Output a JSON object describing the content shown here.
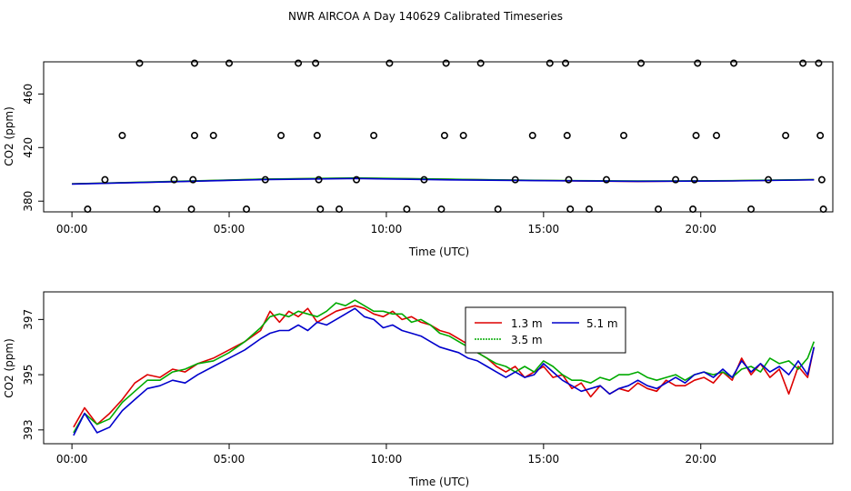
{
  "title": "NWR AIRCOA A  Day 140629  Calibrated Timeseries",
  "chart_data": [
    {
      "type": "scatter",
      "xlabel": "Time (UTC)",
      "ylabel": "CO2 (ppm)",
      "xlim": [
        -0.9,
        24.2
      ],
      "ylim": [
        372,
        484
      ],
      "x_ticks": [
        0,
        5,
        10,
        15,
        20
      ],
      "x_tick_labels": [
        "00:00",
        "05:00",
        "10:00",
        "15:00",
        "20:00"
      ],
      "y_ticks": [
        380,
        420,
        460
      ],
      "y_tick_labels": [
        "380",
        "420",
        "460"
      ],
      "points": [
        {
          "x": 0.5,
          "y": 374
        },
        {
          "x": 1.05,
          "y": 396
        },
        {
          "x": 1.6,
          "y": 429
        },
        {
          "x": 2.15,
          "y": 483
        },
        {
          "x": 2.7,
          "y": 374
        },
        {
          "x": 3.25,
          "y": 396
        },
        {
          "x": 3.8,
          "y": 374
        },
        {
          "x": 3.85,
          "y": 396
        },
        {
          "x": 3.9,
          "y": 429
        },
        {
          "x": 3.9,
          "y": 483
        },
        {
          "x": 4.5,
          "y": 429
        },
        {
          "x": 5.0,
          "y": 483
        },
        {
          "x": 5.55,
          "y": 374
        },
        {
          "x": 6.15,
          "y": 396
        },
        {
          "x": 6.65,
          "y": 429
        },
        {
          "x": 7.2,
          "y": 483
        },
        {
          "x": 7.75,
          "y": 483
        },
        {
          "x": 7.8,
          "y": 429
        },
        {
          "x": 7.85,
          "y": 396
        },
        {
          "x": 7.9,
          "y": 374
        },
        {
          "x": 8.5,
          "y": 374
        },
        {
          "x": 9.05,
          "y": 396
        },
        {
          "x": 9.6,
          "y": 429
        },
        {
          "x": 10.1,
          "y": 483
        },
        {
          "x": 10.65,
          "y": 374
        },
        {
          "x": 11.2,
          "y": 396
        },
        {
          "x": 11.75,
          "y": 374
        },
        {
          "x": 11.85,
          "y": 429
        },
        {
          "x": 11.9,
          "y": 483
        },
        {
          "x": 12.45,
          "y": 429
        },
        {
          "x": 13.0,
          "y": 483
        },
        {
          "x": 13.55,
          "y": 374
        },
        {
          "x": 14.1,
          "y": 396
        },
        {
          "x": 14.65,
          "y": 429
        },
        {
          "x": 15.2,
          "y": 483
        },
        {
          "x": 15.7,
          "y": 483
        },
        {
          "x": 15.75,
          "y": 429
        },
        {
          "x": 15.8,
          "y": 396
        },
        {
          "x": 15.85,
          "y": 374
        },
        {
          "x": 16.45,
          "y": 374
        },
        {
          "x": 17.0,
          "y": 396
        },
        {
          "x": 17.55,
          "y": 429
        },
        {
          "x": 18.1,
          "y": 483
        },
        {
          "x": 18.65,
          "y": 374
        },
        {
          "x": 19.2,
          "y": 396
        },
        {
          "x": 19.75,
          "y": 374
        },
        {
          "x": 19.8,
          "y": 396
        },
        {
          "x": 19.85,
          "y": 429
        },
        {
          "x": 19.9,
          "y": 483
        },
        {
          "x": 20.5,
          "y": 429
        },
        {
          "x": 21.05,
          "y": 483
        },
        {
          "x": 21.6,
          "y": 374
        },
        {
          "x": 22.15,
          "y": 396
        },
        {
          "x": 22.7,
          "y": 429
        },
        {
          "x": 23.25,
          "y": 483
        },
        {
          "x": 23.75,
          "y": 483
        },
        {
          "x": 23.8,
          "y": 429
        },
        {
          "x": 23.85,
          "y": 396
        },
        {
          "x": 23.9,
          "y": 374
        }
      ],
      "series": [
        {
          "name": "1.3 m",
          "color": "#dd0000",
          "x": [
            0,
            3,
            6,
            9,
            12,
            15,
            18,
            21,
            23.6
          ],
          "y": [
            392.9,
            394.5,
            396.3,
            397.2,
            396.3,
            395.4,
            394.7,
            395.2,
            396.0
          ]
        },
        {
          "name": "3.5 m",
          "color": "#00aa00",
          "x": [
            0,
            3,
            6,
            9,
            12,
            15,
            18,
            21,
            23.6
          ],
          "y": [
            392.9,
            394.6,
            396.4,
            397.3,
            396.4,
            395.5,
            395.0,
            395.3,
            396.1
          ]
        },
        {
          "name": "5.1 m",
          "color": "#0000cc",
          "x": [
            0,
            3,
            6,
            9,
            12,
            15,
            18,
            21,
            23.6
          ],
          "y": [
            392.8,
            394.3,
            396.0,
            396.9,
            395.9,
            395.3,
            394.8,
            395.1,
            395.9
          ]
        }
      ]
    },
    {
      "type": "line",
      "xlabel": "Time (UTC)",
      "ylabel": "CO2 (ppm)",
      "xlim": [
        -0.9,
        24.2
      ],
      "ylim": [
        392.5,
        398.0
      ],
      "x_ticks": [
        0,
        5,
        10,
        15,
        20
      ],
      "x_tick_labels": [
        "00:00",
        "05:00",
        "10:00",
        "15:00",
        "20:00"
      ],
      "y_ticks": [
        393,
        395,
        397
      ],
      "y_tick_labels": [
        "393",
        "395",
        "397"
      ],
      "legend": {
        "position": "top-center",
        "entries": [
          "1.3 m",
          "5.1 m",
          "3.5 m"
        ]
      },
      "series": [
        {
          "name": "1.3 m",
          "color": "#dd0000",
          "x": [
            0.05,
            0.4,
            0.8,
            1.2,
            1.6,
            2.0,
            2.4,
            2.8,
            3.2,
            3.6,
            4.0,
            4.5,
            5.0,
            5.5,
            6.0,
            6.3,
            6.6,
            6.9,
            7.2,
            7.5,
            7.8,
            8.1,
            8.4,
            8.7,
            9.0,
            9.3,
            9.6,
            9.9,
            10.2,
            10.5,
            10.8,
            11.1,
            11.4,
            11.7,
            12.0,
            12.3,
            12.6,
            12.9,
            13.2,
            13.5,
            13.8,
            14.1,
            14.4,
            14.7,
            15.0,
            15.3,
            15.6,
            15.9,
            16.2,
            16.5,
            16.8,
            17.1,
            17.4,
            17.7,
            18.0,
            18.3,
            18.6,
            18.9,
            19.2,
            19.5,
            19.8,
            20.1,
            20.4,
            20.7,
            21.0,
            21.3,
            21.6,
            21.9,
            22.2,
            22.5,
            22.8,
            23.1,
            23.4,
            23.6
          ],
          "y": [
            393.1,
            393.8,
            393.2,
            393.6,
            394.1,
            394.7,
            395.0,
            394.9,
            395.2,
            395.1,
            395.4,
            395.6,
            395.9,
            396.2,
            396.6,
            397.3,
            396.9,
            397.3,
            397.1,
            397.4,
            396.9,
            397.1,
            397.3,
            397.4,
            397.5,
            397.4,
            397.2,
            397.1,
            397.3,
            397.0,
            397.1,
            396.9,
            396.8,
            396.6,
            396.5,
            396.3,
            396.1,
            395.8,
            395.6,
            395.3,
            395.1,
            395.3,
            394.9,
            395.1,
            395.3,
            394.9,
            395.0,
            394.5,
            394.7,
            394.2,
            394.6,
            394.3,
            394.5,
            394.4,
            394.7,
            394.5,
            394.4,
            394.8,
            394.6,
            394.6,
            394.8,
            394.9,
            394.7,
            395.1,
            394.8,
            395.6,
            395.0,
            395.4,
            394.9,
            395.2,
            394.3,
            395.3,
            394.9,
            396.0
          ]
        },
        {
          "name": "3.5 m",
          "color": "#00aa00",
          "x": [
            0.05,
            0.4,
            0.8,
            1.2,
            1.6,
            2.0,
            2.4,
            2.8,
            3.2,
            3.6,
            4.0,
            4.5,
            5.0,
            5.5,
            6.0,
            6.3,
            6.6,
            6.9,
            7.2,
            7.5,
            7.8,
            8.1,
            8.4,
            8.7,
            9.0,
            9.3,
            9.6,
            9.9,
            10.2,
            10.5,
            10.8,
            11.1,
            11.4,
            11.7,
            12.0,
            12.3,
            12.6,
            12.9,
            13.2,
            13.5,
            13.8,
            14.1,
            14.4,
            14.7,
            15.0,
            15.3,
            15.6,
            15.9,
            16.2,
            16.5,
            16.8,
            17.1,
            17.4,
            17.7,
            18.0,
            18.3,
            18.6,
            18.9,
            19.2,
            19.5,
            19.8,
            20.1,
            20.4,
            20.7,
            21.0,
            21.3,
            21.6,
            21.9,
            22.2,
            22.5,
            22.8,
            23.1,
            23.4,
            23.6
          ],
          "y": [
            392.9,
            393.6,
            393.2,
            393.4,
            394.0,
            394.4,
            394.8,
            394.8,
            395.1,
            395.2,
            395.4,
            395.5,
            395.8,
            396.2,
            396.7,
            397.1,
            397.2,
            397.1,
            397.3,
            397.2,
            397.1,
            397.3,
            397.6,
            397.5,
            397.7,
            397.5,
            397.3,
            397.3,
            397.2,
            397.2,
            396.9,
            397.0,
            396.8,
            396.5,
            396.4,
            396.2,
            396.0,
            395.8,
            395.6,
            395.4,
            395.3,
            395.1,
            395.3,
            395.1,
            395.5,
            395.3,
            395.0,
            394.8,
            394.8,
            394.7,
            394.9,
            394.8,
            395.0,
            395.0,
            395.1,
            394.9,
            394.8,
            394.9,
            395.0,
            394.8,
            395.0,
            395.1,
            395.0,
            395.1,
            394.9,
            395.2,
            395.3,
            395.1,
            395.6,
            395.4,
            395.5,
            395.2,
            395.6,
            396.2
          ]
        },
        {
          "name": "5.1 m",
          "color": "#0000cc",
          "x": [
            0.05,
            0.4,
            0.8,
            1.2,
            1.6,
            2.0,
            2.4,
            2.8,
            3.2,
            3.6,
            4.0,
            4.5,
            5.0,
            5.5,
            6.0,
            6.3,
            6.6,
            6.9,
            7.2,
            7.5,
            7.8,
            8.1,
            8.4,
            8.7,
            9.0,
            9.3,
            9.6,
            9.9,
            10.2,
            10.5,
            10.8,
            11.1,
            11.4,
            11.7,
            12.0,
            12.3,
            12.6,
            12.9,
            13.2,
            13.5,
            13.8,
            14.1,
            14.4,
            14.7,
            15.0,
            15.3,
            15.6,
            15.9,
            16.2,
            16.5,
            16.8,
            17.1,
            17.4,
            17.7,
            18.0,
            18.3,
            18.6,
            18.9,
            19.2,
            19.5,
            19.8,
            20.1,
            20.4,
            20.7,
            21.0,
            21.3,
            21.6,
            21.9,
            22.2,
            22.5,
            22.8,
            23.1,
            23.4,
            23.6
          ],
          "y": [
            392.8,
            393.6,
            392.9,
            393.1,
            393.7,
            394.1,
            394.5,
            394.6,
            394.8,
            394.7,
            395.0,
            395.3,
            395.6,
            395.9,
            396.3,
            396.5,
            396.6,
            396.6,
            396.8,
            396.6,
            396.9,
            396.8,
            397.0,
            397.2,
            397.4,
            397.1,
            397.0,
            396.7,
            396.8,
            396.6,
            396.5,
            396.4,
            396.2,
            396.0,
            395.9,
            395.8,
            395.6,
            395.5,
            395.3,
            395.1,
            394.9,
            395.1,
            394.9,
            395.0,
            395.4,
            395.1,
            394.8,
            394.6,
            394.4,
            394.5,
            394.6,
            394.3,
            394.5,
            394.6,
            394.8,
            394.6,
            394.5,
            394.7,
            394.9,
            394.7,
            395.0,
            395.1,
            394.9,
            395.2,
            394.9,
            395.5,
            395.1,
            395.4,
            395.1,
            395.3,
            395.0,
            395.5,
            395.0,
            396.0
          ]
        }
      ]
    }
  ]
}
